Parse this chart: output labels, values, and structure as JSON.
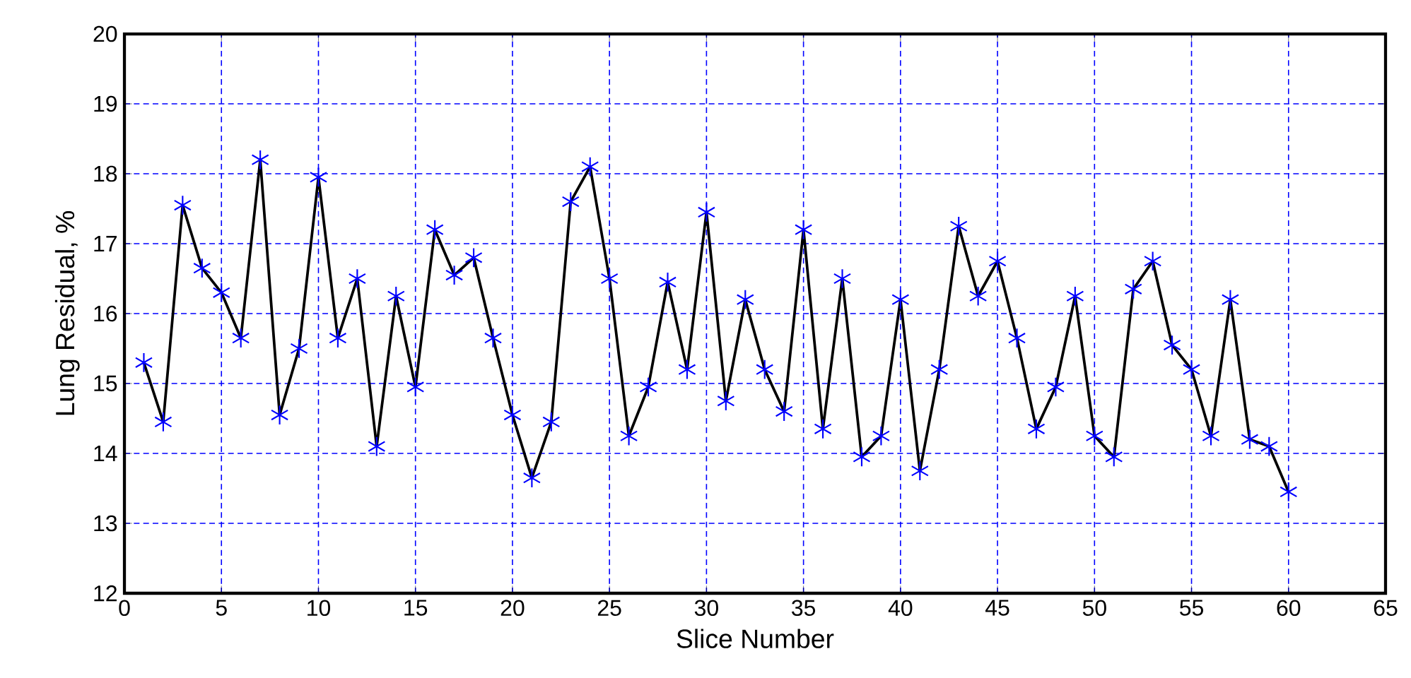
{
  "chart_data": {
    "type": "line",
    "xlabel": "Slice Number",
    "ylabel": "Lung Residual, %",
    "x": [
      1,
      2,
      3,
      4,
      5,
      6,
      7,
      8,
      9,
      10,
      11,
      12,
      13,
      14,
      15,
      16,
      17,
      18,
      19,
      20,
      21,
      22,
      23,
      24,
      25,
      26,
      27,
      28,
      29,
      30,
      31,
      32,
      33,
      34,
      35,
      36,
      37,
      38,
      39,
      40,
      41,
      42,
      43,
      44,
      45,
      46,
      47,
      48,
      49,
      50,
      51,
      52,
      53,
      54,
      55,
      56,
      57,
      58,
      59,
      60
    ],
    "series": [
      {
        "color": "#000000",
        "values": [
          15.3,
          14.45,
          17.55,
          16.65,
          16.3,
          15.65,
          18.2,
          14.55,
          15.5,
          17.95,
          15.65,
          16.5,
          14.1,
          16.25,
          14.95,
          17.2,
          16.55,
          16.8,
          15.65,
          14.55,
          13.65,
          14.45,
          17.6,
          18.1,
          16.5,
          14.25,
          14.95,
          16.45,
          15.2,
          17.45,
          14.75,
          16.2,
          15.2,
          14.6,
          17.2,
          14.35,
          16.5,
          13.95,
          14.25,
          16.2,
          13.75,
          15.2,
          17.25,
          16.25,
          16.75,
          15.65,
          14.35,
          14.95,
          16.25,
          14.25,
          13.95,
          16.35,
          16.75,
          15.55,
          15.2,
          14.25,
          16.2,
          14.2,
          14.1,
          13.45
        ]
      }
    ],
    "xlim": [
      0,
      65
    ],
    "ylim": [
      12,
      20
    ],
    "xticks": [
      0,
      5,
      10,
      15,
      20,
      25,
      30,
      35,
      40,
      45,
      50,
      55,
      60,
      65
    ],
    "yticks": [
      12,
      13,
      14,
      15,
      16,
      17,
      18,
      19,
      20
    ],
    "grid": true,
    "marker": "cross",
    "line_style": "solid"
  }
}
